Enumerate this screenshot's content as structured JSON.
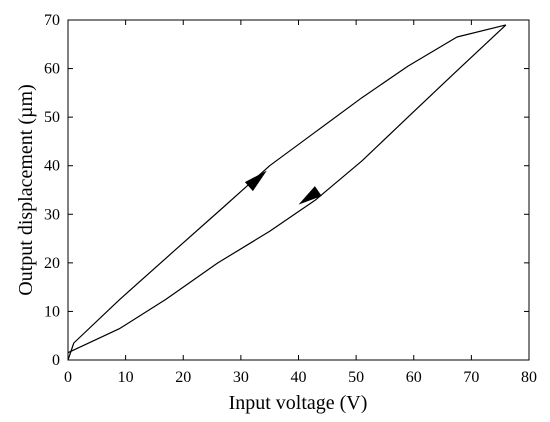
{
  "chart_data": {
    "type": "line",
    "title": "",
    "xlabel": "Input voltage (V)",
    "ylabel": "Output displacement (µm)",
    "xlim": [
      0,
      80
    ],
    "ylim": [
      0,
      70
    ],
    "xticks": [
      "0",
      "10",
      "20",
      "30",
      "40",
      "50",
      "60",
      "70",
      "80"
    ],
    "yticks": [
      "0",
      "10",
      "20",
      "30",
      "40",
      "50",
      "60",
      "70"
    ],
    "grid": false,
    "legend": "none",
    "series": [
      {
        "x": [
          0,
          1,
          9,
          18,
          27,
          35,
          43,
          51,
          59,
          67.5,
          76
        ],
        "y": [
          0,
          3.5,
          12.5,
          22,
          31.5,
          40,
          47,
          54,
          60.5,
          66.5,
          69
        ]
      },
      {
        "x": [
          76,
          67,
          59,
          51,
          43,
          35,
          26,
          17,
          9,
          0
        ],
        "y": [
          69,
          59,
          50,
          41,
          33,
          26.5,
          20,
          12.5,
          6.5,
          1.5
        ]
      }
    ],
    "annotations": [
      {
        "type": "arrow",
        "direction": "up",
        "x": 34.5,
        "y": 39
      },
      {
        "type": "arrow",
        "direction": "down",
        "x": 40,
        "y": 32
      }
    ],
    "colors": {
      "line": "#000000",
      "axis": "#000000"
    }
  }
}
